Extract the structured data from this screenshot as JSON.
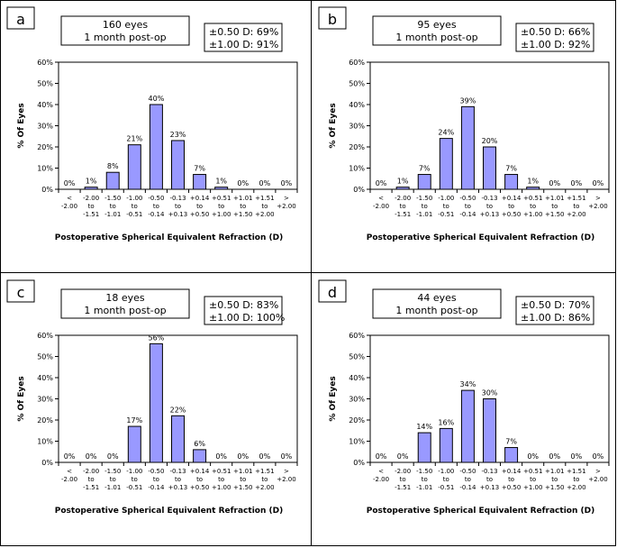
{
  "colors": {
    "bar_fill": "#9999FF",
    "bar_stroke": "#000000",
    "text": "#000000"
  },
  "chart_data": [
    {
      "type": "bar",
      "panel_letter": "a",
      "info_box": [
        "160 eyes",
        "1 month post-op"
      ],
      "accuracy_box": [
        "±0.50 D: 69%",
        "±1.00 D: 91%"
      ],
      "categories": [
        [
          "<",
          "-2.00",
          ""
        ],
        [
          "-2.00",
          "to",
          "-1.51"
        ],
        [
          "-1.50",
          "to",
          "-1.01"
        ],
        [
          "-1.00",
          "to",
          "-0.51"
        ],
        [
          "-0.50",
          "to",
          "-0.14"
        ],
        [
          "-0.13",
          "to",
          "+0.13"
        ],
        [
          "+0.14",
          "to",
          "+0.50"
        ],
        [
          "+0.51",
          "to",
          "+1.00"
        ],
        [
          "+1.01",
          "to",
          "+1.50"
        ],
        [
          "+1.51",
          "to",
          "+2.00"
        ],
        [
          ">",
          "+2.00",
          ""
        ]
      ],
      "values": [
        0,
        1,
        8,
        21,
        40,
        23,
        7,
        1,
        0,
        0,
        0
      ],
      "data_labels": [
        "0%",
        "1%",
        "8%",
        "21%",
        "40%",
        "23%",
        "7%",
        "1%",
        "0%",
        "0%",
        "0%"
      ],
      "y_ticks": [
        "0%",
        "10%",
        "20%",
        "30%",
        "40%",
        "50%",
        "60%"
      ],
      "ylim": [
        0,
        60
      ],
      "ylabel": "% Of Eyes",
      "xlabel": "Postoperative Spherical Equivalent Refraction (D)"
    },
    {
      "type": "bar",
      "panel_letter": "b",
      "info_box": [
        "95 eyes",
        "1 month post-op"
      ],
      "accuracy_box": [
        "±0.50 D: 66%",
        "±1.00 D: 92%"
      ],
      "categories": [
        [
          "<",
          "-2.00",
          ""
        ],
        [
          "-2.00",
          "to",
          "-1.51"
        ],
        [
          "-1.50",
          "to",
          "-1.01"
        ],
        [
          "-1.00",
          "to",
          "-0.51"
        ],
        [
          "-0.50",
          "to",
          "-0.14"
        ],
        [
          "-0.13",
          "to",
          "+0.13"
        ],
        [
          "+0.14",
          "to",
          "+0.50"
        ],
        [
          "+0.51",
          "to",
          "+1.00"
        ],
        [
          "+1.01",
          "to",
          "+1.50"
        ],
        [
          "+1.51",
          "to",
          "+2.00"
        ],
        [
          ">",
          "+2.00",
          ""
        ]
      ],
      "values": [
        0,
        1,
        7,
        24,
        39,
        20,
        7,
        1,
        0,
        0,
        0
      ],
      "data_labels": [
        "0%",
        "1%",
        "7%",
        "24%",
        "39%",
        "20%",
        "7%",
        "1%",
        "0%",
        "0%",
        "0%"
      ],
      "y_ticks": [
        "0%",
        "10%",
        "20%",
        "30%",
        "40%",
        "50%",
        "60%"
      ],
      "ylim": [
        0,
        60
      ],
      "ylabel": "% Of Eyes",
      "xlabel": "Postoperative Spherical Equivalent Refraction (D)"
    },
    {
      "type": "bar",
      "panel_letter": "c",
      "info_box": [
        "18 eyes",
        "1 month post-op"
      ],
      "accuracy_box": [
        "±0.50 D: 83%",
        "±1.00 D: 100%"
      ],
      "categories": [
        [
          "<",
          "-2.00",
          ""
        ],
        [
          "-2.00",
          "to",
          "-1.51"
        ],
        [
          "-1.50",
          "to",
          "-1.01"
        ],
        [
          "-1.00",
          "to",
          "-0.51"
        ],
        [
          "-0.50",
          "to",
          "-0.14"
        ],
        [
          "-0.13",
          "to",
          "+0.13"
        ],
        [
          "+0.14",
          "to",
          "+0.50"
        ],
        [
          "+0.51",
          "to",
          "+1.00"
        ],
        [
          "+1.01",
          "to",
          "+1.50"
        ],
        [
          "+1.51",
          "to",
          "+2.00"
        ],
        [
          ">",
          "+2.00",
          ""
        ]
      ],
      "values": [
        0,
        0,
        0,
        17,
        56,
        22,
        6,
        0,
        0,
        0,
        0
      ],
      "data_labels": [
        "0%",
        "0%",
        "0%",
        "17%",
        "56%",
        "22%",
        "6%",
        "0%",
        "0%",
        "0%",
        "0%"
      ],
      "y_ticks": [
        "0%",
        "10%",
        "20%",
        "30%",
        "40%",
        "50%",
        "60%"
      ],
      "ylim": [
        0,
        60
      ],
      "ylabel": "% Of Eyes",
      "xlabel": "Postoperative Spherical Equivalent Refraction (D)"
    },
    {
      "type": "bar",
      "panel_letter": "d",
      "info_box": [
        "44 eyes",
        "1 month post-op"
      ],
      "accuracy_box": [
        "±0.50 D: 70%",
        "±1.00 D: 86%"
      ],
      "categories": [
        [
          "<",
          "-2.00",
          ""
        ],
        [
          "-2.00",
          "to",
          "-1.51"
        ],
        [
          "-1.50",
          "to",
          "-1.01"
        ],
        [
          "-1.00",
          "to",
          "-0.51"
        ],
        [
          "-0.50",
          "to",
          "-0.14"
        ],
        [
          "-0.13",
          "to",
          "+0.13"
        ],
        [
          "+0.14",
          "to",
          "+0.50"
        ],
        [
          "+0.51",
          "to",
          "+1.00"
        ],
        [
          "+1.01",
          "to",
          "+1.50"
        ],
        [
          "+1.51",
          "to",
          "+2.00"
        ],
        [
          ">",
          "+2.00",
          ""
        ]
      ],
      "values": [
        0,
        0,
        14,
        16,
        34,
        30,
        7,
        0,
        0,
        0,
        0
      ],
      "data_labels": [
        "0%",
        "0%",
        "14%",
        "16%",
        "34%",
        "30%",
        "7%",
        "0%",
        "0%",
        "0%",
        "0%"
      ],
      "y_ticks": [
        "0%",
        "10%",
        "20%",
        "30%",
        "40%",
        "50%",
        "60%"
      ],
      "ylim": [
        0,
        60
      ],
      "ylabel": "% Of Eyes",
      "xlabel": "Postoperative Spherical Equivalent Refraction (D)"
    }
  ]
}
